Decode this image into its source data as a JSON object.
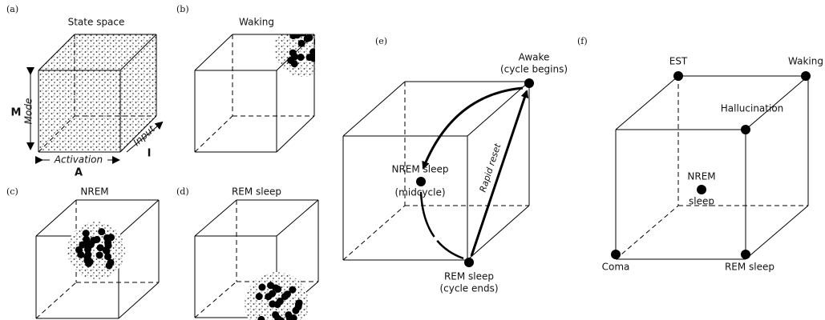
{
  "panels": [
    {
      "label": "(a)",
      "title": "State space",
      "mode_label": "Mode",
      "mode_letter": "M",
      "activation_label": "Activation",
      "activation_letter": "A",
      "input_label": "Input",
      "input_letter": "I"
    },
    {
      "label": "(b)",
      "title": "Waking"
    },
    {
      "label": "(c)",
      "title": "NREM"
    },
    {
      "label": "(d)",
      "title": "REM sleep"
    },
    {
      "label": "(e)",
      "nodes": [
        {
          "label": "Awake",
          "sublabel": "(cycle begins)"
        },
        {
          "label": "NREM sleep",
          "sublabel": "(midcycle)"
        },
        {
          "label": "REM sleep",
          "sublabel": "(cycle ends)"
        }
      ],
      "arrow_label": "Rapid reset"
    },
    {
      "label": "(f)",
      "nodes": [
        {
          "label": "EST"
        },
        {
          "label": "Waking"
        },
        {
          "label": "Hallucination"
        },
        {
          "label": "NREM",
          "sublabel": "sleep"
        },
        {
          "label": "Coma"
        },
        {
          "label": "REM sleep"
        }
      ]
    }
  ]
}
